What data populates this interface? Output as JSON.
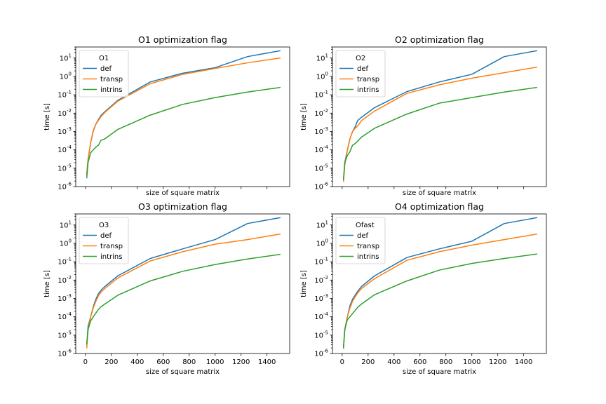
{
  "colors": {
    "def": "#1f77b4",
    "transp": "#ff7f0e",
    "intrins": "#2ca02c"
  },
  "chart_data": [
    {
      "type": "line",
      "title": "O1 optimization flag",
      "xlabel": "size of square matrix",
      "ylabel": "time [s]",
      "yscale": "log",
      "ylim": [
        1e-06,
        40
      ],
      "xlim": [
        -75,
        1575
      ],
      "legend_title": "O1",
      "legend_loc": "upper-left",
      "show_xtick_labels": false,
      "x": [
        10,
        20,
        40,
        60,
        80,
        100,
        120,
        150,
        250,
        500,
        750,
        1000,
        1250,
        1500
      ],
      "series": [
        {
          "name": "def",
          "color_key": "def",
          "values": [
            5e-06,
            3e-05,
            0.00025,
            0.0011,
            0.0025,
            0.0045,
            0.0075,
            0.012,
            0.05,
            0.5,
            1.5,
            3,
            12,
            25
          ]
        },
        {
          "name": "transp",
          "color_key": "transp",
          "values": [
            4e-06,
            3e-05,
            0.00025,
            0.001,
            0.0025,
            0.004,
            0.0065,
            0.011,
            0.045,
            0.4,
            1.3,
            2.7,
            5.5,
            10
          ]
        },
        {
          "name": "intrins",
          "color_key": "intrins",
          "values": [
            3e-06,
            2e-05,
            7e-05,
            0.0001,
            0.00014,
            0.00018,
            0.00033,
            0.0004,
            0.0013,
            0.0078,
            0.03,
            0.07,
            0.14,
            0.25
          ]
        }
      ]
    },
    {
      "type": "line",
      "title": "O2 optimization flag",
      "xlabel": "size of square matrix",
      "ylabel": "time [s]",
      "yscale": "log",
      "ylim": [
        1e-06,
        40
      ],
      "xlim": [
        -75,
        1575
      ],
      "legend_title": "O2",
      "legend_loc": "upper-left",
      "show_xtick_labels": false,
      "x": [
        10,
        20,
        40,
        60,
        80,
        100,
        120,
        150,
        250,
        500,
        750,
        1000,
        1250,
        1500
      ],
      "series": [
        {
          "name": "def",
          "color_key": "def",
          "values": [
            2e-06,
            2e-05,
            0.0001,
            0.0004,
            0.001,
            0.0018,
            0.004,
            0.006,
            0.02,
            0.15,
            0.5,
            1.3,
            12,
            25
          ]
        },
        {
          "name": "transp",
          "color_key": "transp",
          "values": [
            2e-06,
            1.5e-05,
            0.0001,
            0.0004,
            0.001,
            0.0015,
            0.002,
            0.004,
            0.013,
            0.12,
            0.35,
            0.8,
            1.6,
            3.2
          ]
        },
        {
          "name": "intrins",
          "color_key": "intrins",
          "values": [
            2.5e-06,
            2e-05,
            5e-05,
            8e-05,
            0.00018,
            0.00022,
            0.0003,
            0.0005,
            0.0015,
            0.009,
            0.035,
            0.07,
            0.14,
            0.25
          ]
        }
      ]
    },
    {
      "type": "line",
      "title": "O3 optimization flag",
      "xlabel": "size of square matrix",
      "ylabel": "time [s]",
      "yscale": "log",
      "ylim": [
        1e-06,
        40
      ],
      "xlim": [
        -75,
        1575
      ],
      "legend_title": "O3",
      "legend_loc": "upper-left",
      "show_xtick_labels": true,
      "xticks": [
        0,
        200,
        400,
        600,
        800,
        1000,
        1200,
        1400
      ],
      "x": [
        10,
        20,
        40,
        60,
        80,
        100,
        120,
        150,
        250,
        500,
        750,
        1000,
        1250,
        1500
      ],
      "series": [
        {
          "name": "def",
          "color_key": "def",
          "values": [
            3e-06,
            3e-05,
            0.0001,
            0.00035,
            0.0009,
            0.0018,
            0.0028,
            0.0045,
            0.017,
            0.15,
            0.5,
            1.6,
            12,
            25
          ]
        },
        {
          "name": "transp",
          "color_key": "transp",
          "values": [
            2e-06,
            2e-05,
            0.0001,
            0.0003,
            0.0007,
            0.0014,
            0.0022,
            0.0035,
            0.013,
            0.11,
            0.35,
            0.9,
            1.6,
            3.2
          ]
        },
        {
          "name": "intrins",
          "color_key": "intrins",
          "values": [
            3.5e-06,
            2e-05,
            6e-05,
            0.0001,
            0.00016,
            0.00025,
            0.00035,
            0.0005,
            0.0015,
            0.009,
            0.03,
            0.07,
            0.14,
            0.25
          ]
        }
      ]
    },
    {
      "type": "line",
      "title": "O4 optimization flag",
      "xlabel": "size of square matrix",
      "ylabel": "time [s]",
      "yscale": "log",
      "ylim": [
        1e-06,
        40
      ],
      "xlim": [
        -75,
        1575
      ],
      "legend_title": "Ofast",
      "legend_loc": "upper-left",
      "show_xtick_labels": true,
      "xticks": [
        0,
        200,
        400,
        600,
        800,
        1000,
        1200,
        1400
      ],
      "x": [
        10,
        20,
        40,
        60,
        80,
        100,
        120,
        150,
        250,
        500,
        750,
        1000,
        1250,
        1500
      ],
      "series": [
        {
          "name": "def",
          "color_key": "def",
          "values": [
            2e-06,
            2e-05,
            0.0001,
            0.0004,
            0.0009,
            0.0015,
            0.0025,
            0.0045,
            0.017,
            0.17,
            0.5,
            1.3,
            12,
            25
          ]
        },
        {
          "name": "transp",
          "color_key": "transp",
          "values": [
            2e-06,
            2e-05,
            0.0001,
            0.0003,
            0.0007,
            0.0012,
            0.002,
            0.0035,
            0.012,
            0.12,
            0.35,
            0.8,
            1.6,
            3.2
          ]
        },
        {
          "name": "intrins",
          "color_key": "intrins",
          "values": [
            2e-06,
            2e-05,
            7e-05,
            0.0001,
            0.00015,
            0.00022,
            0.00033,
            0.0005,
            0.0016,
            0.009,
            0.035,
            0.08,
            0.15,
            0.26
          ]
        }
      ]
    }
  ]
}
